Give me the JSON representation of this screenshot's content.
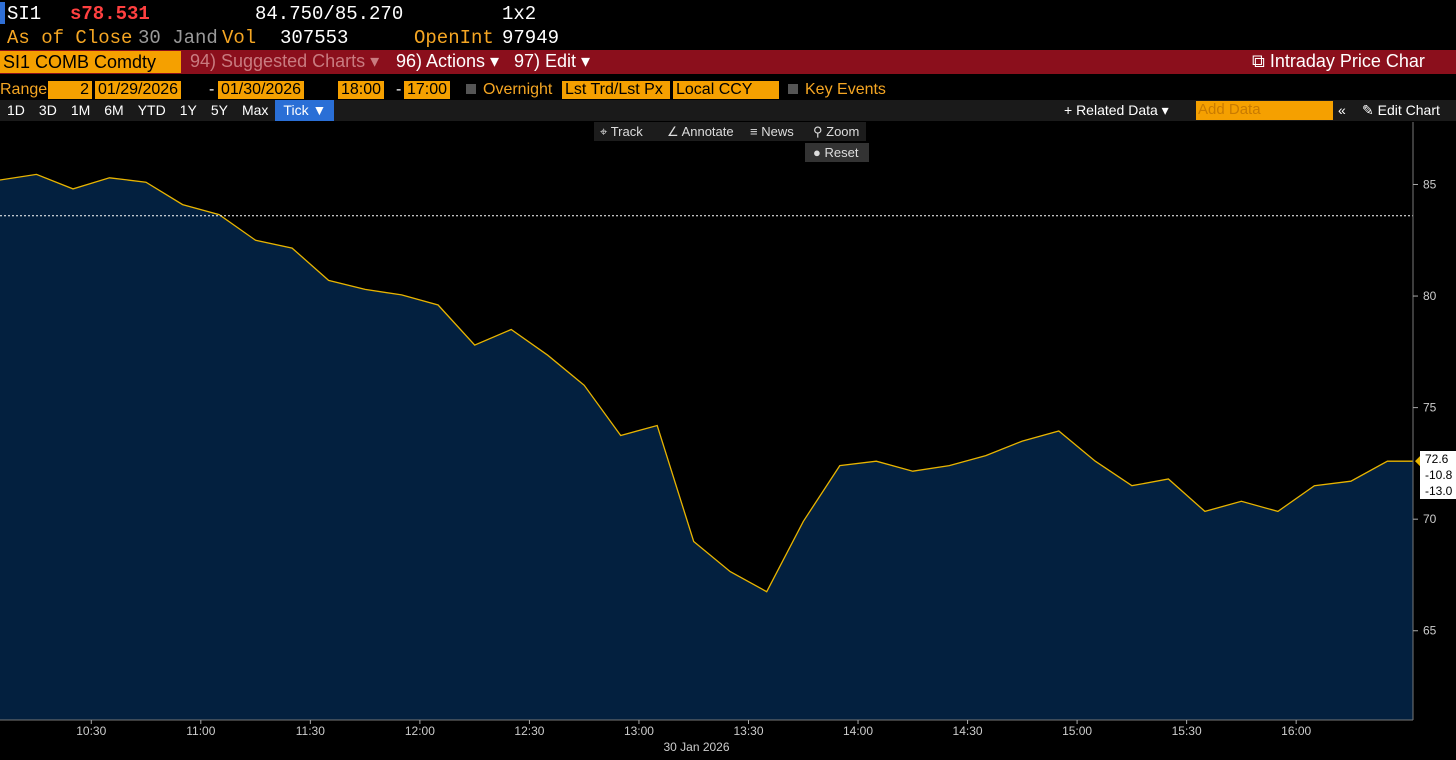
{
  "header": {
    "ticker": "SI1",
    "price": "s78.531",
    "bid_ask": "84.750/85.270",
    "size": "1x2",
    "as_of": "As of Close",
    "date": "30 Jand",
    "vol_label": "Vol",
    "vol": "307553",
    "openint_label": "OpenInt",
    "openint": "97949"
  },
  "menu": {
    "security": "SI1 COMB Comdty",
    "suggested": "94) Suggested Charts ▾",
    "actions": "96) Actions ▾",
    "edit": "97) Edit ▾",
    "title": "Intraday Price Char"
  },
  "controls": {
    "range_label": "Range",
    "range_value": "2",
    "start_date": "01/29/2026",
    "end_date": "01/30/2026",
    "start_time": "18:00",
    "end_time": "17:00",
    "overnight": "Overnight",
    "price_type": "Lst Trd/Lst Px",
    "currency": "Local CCY",
    "key_events": "Key Events",
    "periods": [
      "1D",
      "3D",
      "1M",
      "6M",
      "YTD",
      "1Y",
      "5Y",
      "Max",
      "Tick ▼"
    ],
    "related": "+ Related Data ▾",
    "add_data": "Add Data",
    "edit_chart": "Edit Chart"
  },
  "toolbar": [
    "Track",
    "Annotate",
    "News",
    "Zoom",
    "Reset"
  ],
  "chart_data": {
    "type": "area",
    "x": [
      605,
      615,
      625,
      635,
      645,
      655,
      665,
      675,
      685,
      695,
      705,
      715,
      725,
      735,
      745,
      755,
      765,
      775,
      785,
      795,
      805,
      815,
      825,
      835,
      845,
      855,
      865,
      875,
      885,
      895,
      905,
      915,
      925,
      935,
      945,
      955,
      965,
      975,
      985,
      992
    ],
    "values": [
      85.2,
      85.45,
      84.8,
      85.3,
      85.1,
      84.1,
      83.65,
      82.5,
      82.15,
      80.7,
      80.3,
      80.05,
      79.6,
      77.8,
      78.5,
      77.35,
      76.0,
      73.75,
      74.2,
      69.0,
      67.65,
      66.75,
      69.9,
      72.4,
      72.6,
      72.15,
      72.4,
      72.85,
      73.5,
      73.95,
      72.6,
      71.5,
      71.8,
      70.35,
      70.8,
      70.35,
      71.5,
      71.7,
      72.6,
      72.6
    ],
    "color": "#e8b400",
    "fill": "#03203f",
    "reference_line": 83.6,
    "xlim": [
      605,
      992
    ],
    "ylim": [
      61,
      87.8
    ],
    "xticks": [
      {
        "value": 630,
        "label": "10:30"
      },
      {
        "value": 660,
        "label": "11:00"
      },
      {
        "value": 690,
        "label": "11:30"
      },
      {
        "value": 720,
        "label": "12:00"
      },
      {
        "value": 750,
        "label": "12:30"
      },
      {
        "value": 780,
        "label": "13:00"
      },
      {
        "value": 810,
        "label": "13:30"
      },
      {
        "value": 840,
        "label": "14:00"
      },
      {
        "value": 870,
        "label": "14:30"
      },
      {
        "value": 900,
        "label": "15:00"
      },
      {
        "value": 930,
        "label": "15:30"
      },
      {
        "value": 960,
        "label": "16:00"
      }
    ],
    "yticks": [
      65,
      70,
      75,
      80,
      85
    ],
    "x_label": "30 Jan 2026",
    "price_tag": [
      "72.6",
      "-10.8",
      "-13.0"
    ]
  }
}
